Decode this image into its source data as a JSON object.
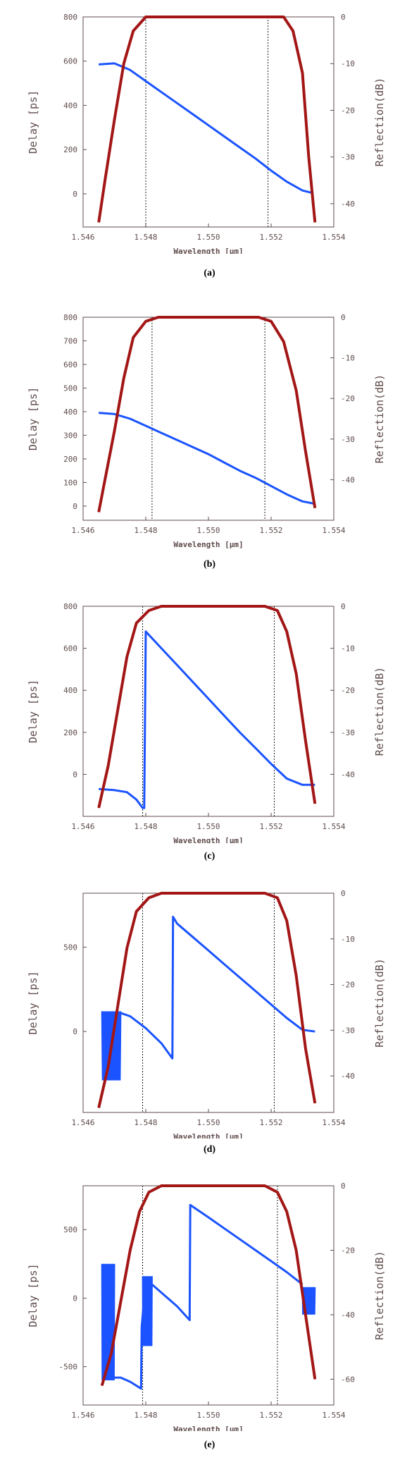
{
  "colors": {
    "delay": "#1a53ff",
    "reflection": "#a31616",
    "axis": "#5f4b4b",
    "guide": "#222222"
  },
  "chart_data": [
    {
      "type": "line",
      "caption": "(a)",
      "xlabel": "Wavelength [μm]",
      "ylabel_left": "Delay [ps]",
      "ylabel_right": "Reflection(dB)",
      "xlim": [
        1.546,
        1.554
      ],
      "xticks": [
        "1.546",
        "1.548",
        "1.550",
        "1.552",
        "1.554"
      ],
      "ylim_left": [
        -150,
        800
      ],
      "yticks_left": [
        "800",
        "600",
        "400",
        "200",
        "0"
      ],
      "ytick_values_left": [
        800,
        600,
        400,
        200,
        0
      ],
      "ylim_right": [
        -45,
        0
      ],
      "yticks_right": [
        "0",
        "-10",
        "-20",
        "-30",
        "-40"
      ],
      "ytick_values_right": [
        0,
        -10,
        -20,
        -30,
        -40
      ],
      "guides_x": [
        1.548,
        1.5519
      ],
      "guide_bottom": -150,
      "delay": {
        "name": "Delay",
        "x": [
          1.5465,
          1.547,
          1.5475,
          1.548,
          1.5485,
          1.549,
          1.5495,
          1.55,
          1.5505,
          1.551,
          1.5515,
          1.552,
          1.5525,
          1.553,
          1.5533
        ],
        "y": [
          585,
          590,
          560,
          510,
          460,
          410,
          360,
          310,
          260,
          210,
          160,
          105,
          55,
          15,
          5
        ]
      },
      "reflection": {
        "name": "Reflection",
        "x": [
          1.5465,
          1.5467,
          1.547,
          1.5473,
          1.5476,
          1.548,
          1.5484,
          1.552,
          1.5524,
          1.5527,
          1.553,
          1.5532,
          1.5534
        ],
        "y": [
          -44,
          -35,
          -22,
          -10,
          -3,
          0,
          0,
          0,
          0,
          -3,
          -12,
          -30,
          -44
        ]
      }
    },
    {
      "type": "line",
      "caption": "(b)",
      "xlabel": "Wavelength [μm]",
      "ylabel_left": "Delay [ps]",
      "ylabel_right": "Reflection(dB)",
      "xlim": [
        1.546,
        1.554
      ],
      "xticks": [
        "1.546",
        "1.548",
        "1.550",
        "1.552",
        "1.554"
      ],
      "ylim_left": [
        -60,
        800
      ],
      "yticks_left": [
        "800",
        "700",
        "600",
        "500",
        "400",
        "300",
        "200",
        "100",
        "0"
      ],
      "ytick_values_left": [
        800,
        700,
        600,
        500,
        400,
        300,
        200,
        100,
        0
      ],
      "ylim_right": [
        -50,
        0
      ],
      "yticks_right": [
        "0",
        "-10",
        "-20",
        "-30",
        "-40"
      ],
      "ytick_values_right": [
        0,
        -10,
        -20,
        -30,
        -40
      ],
      "guides_x": [
        1.5482,
        1.5518
      ],
      "guide_bottom": -60,
      "delay": {
        "name": "Delay",
        "x": [
          1.5465,
          1.547,
          1.5475,
          1.548,
          1.5485,
          1.549,
          1.5495,
          1.55,
          1.5505,
          1.551,
          1.5515,
          1.552,
          1.5525,
          1.553,
          1.5534
        ],
        "y": [
          395,
          390,
          370,
          340,
          310,
          280,
          250,
          220,
          185,
          150,
          120,
          85,
          50,
          20,
          10
        ]
      },
      "reflection": {
        "name": "Reflection",
        "x": [
          1.5465,
          1.5467,
          1.547,
          1.5473,
          1.5476,
          1.548,
          1.5484,
          1.5516,
          1.552,
          1.5524,
          1.5528,
          1.5531,
          1.5534
        ],
        "y": [
          -48,
          -40,
          -28,
          -15,
          -5,
          -1,
          0,
          0,
          -1,
          -6,
          -18,
          -33,
          -47
        ]
      }
    },
    {
      "type": "line",
      "caption": "(c)",
      "xlabel": "Wavelength [μm]",
      "ylabel_left": "Delay [ps]",
      "ylabel_right": "Reflection(dB)",
      "xlim": [
        1.546,
        1.554
      ],
      "xticks": [
        "1.546",
        "1.548",
        "1.550",
        "1.552",
        "1.554"
      ],
      "ylim_left": [
        -200,
        800
      ],
      "yticks_left": [
        "800",
        "600",
        "400",
        "200",
        "0"
      ],
      "ytick_values_left": [
        800,
        600,
        400,
        200,
        0
      ],
      "ylim_right": [
        -50,
        0
      ],
      "yticks_right": [
        "0",
        "-10",
        "-20",
        "-30",
        "-40"
      ],
      "ytick_values_right": [
        0,
        -10,
        -20,
        -30,
        -40
      ],
      "guides_x": [
        1.5479,
        1.5521
      ],
      "guide_bottom": -200,
      "delay": {
        "name": "Delay",
        "x": [
          1.5465,
          1.547,
          1.5474,
          1.5477,
          1.5479,
          1.54795,
          1.548,
          1.5485,
          1.549,
          1.5495,
          1.55,
          1.5505,
          1.551,
          1.5515,
          1.552,
          1.5525,
          1.553,
          1.5534
        ],
        "y": [
          -70,
          -75,
          -85,
          -120,
          -160,
          -160,
          680,
          600,
          520,
          440,
          360,
          280,
          200,
          125,
          50,
          -20,
          -50,
          -50
        ]
      },
      "reflection": {
        "name": "Reflection",
        "x": [
          1.5465,
          1.5468,
          1.5471,
          1.5474,
          1.5477,
          1.5481,
          1.5485,
          1.5518,
          1.5522,
          1.5525,
          1.5528,
          1.5531,
          1.5534
        ],
        "y": [
          -48,
          -38,
          -25,
          -12,
          -4,
          -1,
          0,
          0,
          -1,
          -6,
          -16,
          -32,
          -47
        ]
      }
    },
    {
      "type": "line",
      "caption": "(d)",
      "xlabel": "Wavelength [μm]",
      "ylabel_left": "Delay [ps]",
      "ylabel_right": "Reflection(dB)",
      "xlim": [
        1.546,
        1.554
      ],
      "xticks": [
        "1.546",
        "1.548",
        "1.550",
        "1.552",
        "1.554"
      ],
      "ylim_left": [
        -480,
        820
      ],
      "yticks_left": [
        "500",
        "0"
      ],
      "ytick_values_left": [
        500,
        0
      ],
      "ylim_right": [
        -48,
        0
      ],
      "yticks_right": [
        "0",
        "-10",
        "-20",
        "-30",
        "-40"
      ],
      "ytick_values_right": [
        0,
        -10,
        -20,
        -30,
        -40
      ],
      "guides_x": [
        1.5479,
        1.5521
      ],
      "guide_bottom": -480,
      "delay_band": {
        "x0": 1.5466,
        "x1": 1.5472,
        "ymin": -290,
        "ymax": 120
      },
      "delay": {
        "name": "Delay",
        "x": [
          1.5472,
          1.5475,
          1.548,
          1.5485,
          1.54885,
          1.54887,
          1.549,
          1.5495,
          1.55,
          1.5505,
          1.551,
          1.5515,
          1.552,
          1.5525,
          1.553,
          1.5534
        ],
        "y": [
          110,
          90,
          20,
          -70,
          -160,
          680,
          640,
          560,
          480,
          400,
          320,
          240,
          160,
          80,
          10,
          0
        ]
      },
      "reflection": {
        "name": "Reflection",
        "x": [
          1.5465,
          1.5468,
          1.5471,
          1.5474,
          1.5477,
          1.5481,
          1.5485,
          1.5518,
          1.5522,
          1.5525,
          1.5528,
          1.5531,
          1.5534
        ],
        "y": [
          -47,
          -38,
          -25,
          -12,
          -4,
          -1,
          0,
          0,
          -1,
          -6,
          -18,
          -34,
          -46
        ]
      }
    },
    {
      "type": "line",
      "caption": "(e)",
      "xlabel": "Wavelength [μm]",
      "ylabel_left": "Delay [ps]",
      "ylabel_right": "Reflection(dB)",
      "xlim": [
        1.546,
        1.554
      ],
      "xticks": [
        "1.546",
        "1.548",
        "1.550",
        "1.552",
        "1.554"
      ],
      "ylim_left": [
        -780,
        820
      ],
      "yticks_left": [
        "500",
        "0",
        "-500"
      ],
      "ytick_values_left": [
        500,
        0,
        -500
      ],
      "ylim_right": [
        -68,
        0
      ],
      "yticks_right": [
        "0",
        "-20",
        "-40",
        "-60"
      ],
      "ytick_values_right": [
        0,
        -20,
        -40,
        -60
      ],
      "guides_x": [
        1.5479,
        1.5522
      ],
      "guide_bottom": -780,
      "delay_band": {
        "x0": 1.5466,
        "x1": 1.547,
        "ymin": -600,
        "ymax": 250
      },
      "delay_band2": {
        "x0": 1.5479,
        "x1": 1.5482,
        "ymin": -350,
        "ymax": 160
      },
      "delay_band3": {
        "x0": 1.553,
        "x1": 1.5534,
        "ymin": -120,
        "ymax": 80
      },
      "delay": {
        "name": "Delay",
        "x": [
          1.547,
          1.5472,
          1.5475,
          1.54785,
          1.54787,
          1.548,
          1.5485,
          1.549,
          1.5494,
          1.54942,
          1.55,
          1.5505,
          1.551,
          1.5515,
          1.552,
          1.5525,
          1.553
        ],
        "y": [
          -580,
          -580,
          -610,
          -660,
          -210,
          140,
          40,
          -60,
          -160,
          680,
          590,
          510,
          430,
          350,
          270,
          190,
          100
        ]
      },
      "reflection": {
        "name": "Reflection",
        "x": [
          1.5466,
          1.5469,
          1.5472,
          1.5475,
          1.5478,
          1.5481,
          1.5485,
          1.5518,
          1.5522,
          1.5525,
          1.5528,
          1.5531,
          1.5534
        ],
        "y": [
          -62,
          -52,
          -36,
          -20,
          -8,
          -2,
          0,
          0,
          -2,
          -8,
          -20,
          -40,
          -60
        ]
      }
    }
  ]
}
